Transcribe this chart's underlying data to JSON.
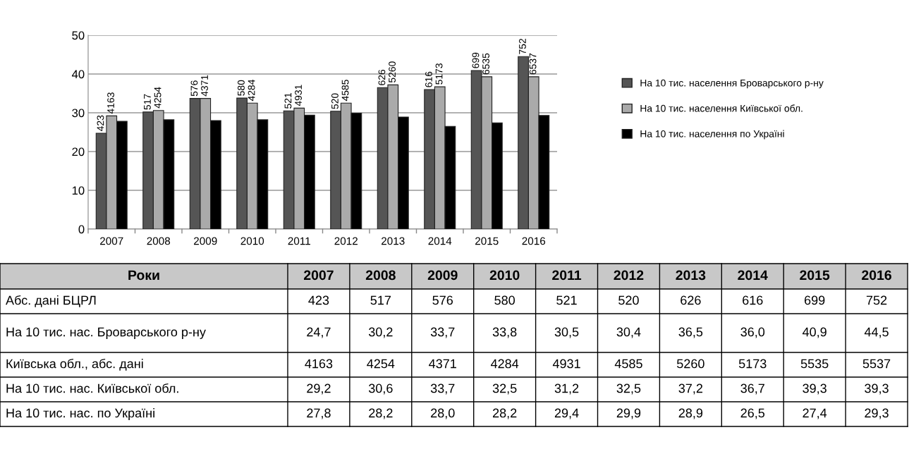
{
  "chart_data": [
    {
      "type": "bar",
      "categories": [
        "2007",
        "2008",
        "2009",
        "2010",
        "2011",
        "2012",
        "2013",
        "2014",
        "2015",
        "2016"
      ],
      "ylim": [
        0,
        50
      ],
      "yticks": [
        0,
        10,
        20,
        30,
        40,
        50
      ],
      "grid": "y",
      "legend": "right",
      "series": [
        {
          "name": "На 10 тис. населення Броварського р-ну",
          "color": "#555555",
          "values": [
            24.7,
            30.2,
            33.7,
            33.8,
            30.5,
            30.4,
            36.5,
            36.0,
            40.9,
            44.5
          ]
        },
        {
          "name": "На 10 тис. населення Київської обл.",
          "color": "#aaaaaa",
          "values": [
            29.2,
            30.6,
            33.7,
            32.5,
            31.2,
            32.5,
            37.2,
            36.7,
            39.3,
            39.3
          ]
        },
        {
          "name": "На 10 тис. населення по Україні",
          "color": "#000000",
          "values": [
            27.8,
            28.2,
            28.0,
            28.2,
            29.4,
            29.9,
            28.9,
            26.5,
            27.4,
            29.3
          ]
        }
      ],
      "annotations": [
        "423",
        "517",
        "576",
        "580",
        "521",
        "520",
        "626",
        "616",
        "699",
        "752",
        "4163",
        "4254",
        "4371",
        "4284",
        "4931",
        "4585",
        "5260",
        "5173",
        "6535",
        "6537"
      ]
    },
    {
      "type": "heatmap",
      "title": "Роки",
      "categories": [
        "2007",
        "2008",
        "2009",
        "2010",
        "2011",
        "2012",
        "2013",
        "2014",
        "2015",
        "2016"
      ],
      "y_categories": [
        "Абс. дані БЦРЛ",
        "На 10 тис. нас. Броварського р-ну",
        "Київська обл., абс. дані",
        "На 10 тис. нас. Київської обл.",
        "На 10 тис. нас. по Україні"
      ],
      "cells": [
        [
          423,
          517,
          576,
          580,
          521,
          520,
          626,
          616,
          699,
          752
        ],
        [
          24.7,
          30.2,
          33.7,
          33.8,
          30.5,
          30.4,
          36.5,
          36.0,
          40.9,
          44.5
        ],
        [
          4163,
          4254,
          4371,
          4284,
          4931,
          4585,
          5260,
          5173,
          5535,
          5537
        ],
        [
          29.2,
          30.6,
          33.7,
          32.5,
          31.2,
          32.5,
          37.2,
          36.7,
          39.3,
          39.3
        ],
        [
          27.8,
          28.2,
          28.0,
          28.2,
          29.4,
          29.9,
          28.9,
          26.5,
          27.4,
          29.3
        ]
      ],
      "cell_labels": [
        [
          "423",
          "517",
          "576",
          "580",
          "521",
          "520",
          "626",
          "616",
          "699",
          "752"
        ],
        [
          "24,7",
          "30,2",
          "33,7",
          "33,8",
          "30,5",
          "30,4",
          "36,5",
          "36,0",
          "40,9",
          "44,5"
        ],
        [
          "4163",
          "4254",
          "4371",
          "4284",
          "4931",
          "4585",
          "5260",
          "5173",
          "5535",
          "5537"
        ],
        [
          "29,2",
          "30,6",
          "33,7",
          "32,5",
          "31,2",
          "32,5",
          "37,2",
          "36,7",
          "39,3",
          "39,3"
        ],
        [
          "27,8",
          "28,2",
          "28,0",
          "28,2",
          "29,4",
          "29,9",
          "28,9",
          "26,5",
          "27,4",
          "29,3"
        ]
      ]
    }
  ]
}
